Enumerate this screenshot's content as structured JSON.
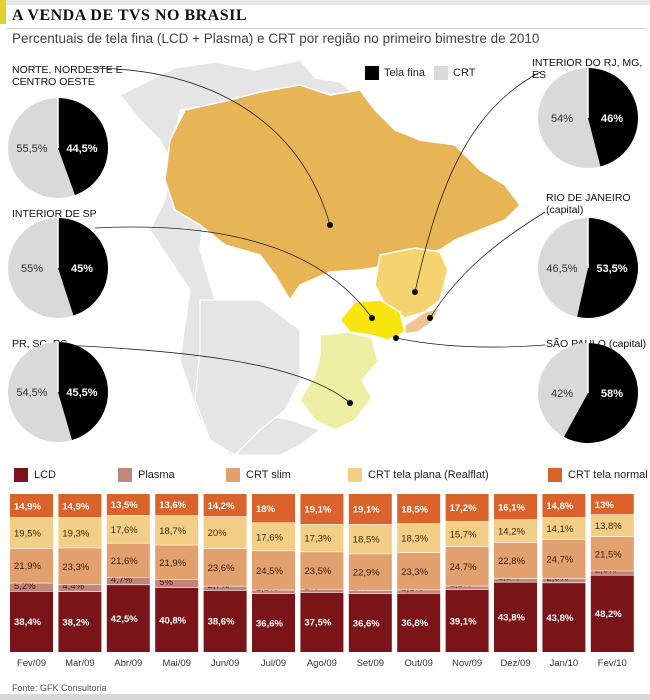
{
  "header": {
    "title": "A VENDA DE TVS NO BRASIL",
    "subtitle": "Percentuais de tela fina (LCD + Plasma) e CRT por região no primeiro bimestre de 2010"
  },
  "map_legend": {
    "thin": "Tela fina",
    "crt": "CRT"
  },
  "source": "Fonte: GFK Consultoria",
  "colors": {
    "thin": "#000000",
    "crt": "#d9d9d9",
    "lcd": "#7b1419",
    "plasma": "#c0867c",
    "crt_slim": "#e2a06e",
    "crt_flat": "#f3ce86",
    "crt_normal": "#d9632a",
    "map_north": "#e8b556",
    "map_sp": "#f8e40f",
    "map_interior": "#f5d36f",
    "map_rj": "#f1c393",
    "map_south": "#eeeea5"
  },
  "chart_data": [
    {
      "type": "pie",
      "title": "Percentuais de tela fina (LCD + Plasma) e CRT por região no primeiro bimestre de 2010",
      "series_names": [
        "Tela fina",
        "CRT"
      ],
      "pies": [
        {
          "region": "NORTE, NORDESTE E\nCENTRO OESTE",
          "thin": 44.5,
          "crt": 55.5,
          "thin_label": "44,5%",
          "crt_label": "55,5%"
        },
        {
          "region": "INTERIOR DE SP",
          "thin": 45,
          "crt": 55,
          "thin_label": "45%",
          "crt_label": "55%"
        },
        {
          "region": "PR, SC, RS",
          "thin": 45.5,
          "crt": 54.5,
          "thin_label": "45,5%",
          "crt_label": "54,5%"
        },
        {
          "region": "INTERIOR DO RJ, MG, ES",
          "thin": 46,
          "crt": 54,
          "thin_label": "46%",
          "crt_label": "54%"
        },
        {
          "region": "RIO DE JANEIRO\n(capital)",
          "thin": 53.5,
          "crt": 46.5,
          "thin_label": "53,5%",
          "crt_label": "46,5%"
        },
        {
          "region": "SÃO PAULO (capital)",
          "thin": 58,
          "crt": 42,
          "thin_label": "58%",
          "crt_label": "42%"
        }
      ]
    },
    {
      "type": "bar",
      "stacked": true,
      "categories": [
        "Fev/09",
        "Mar/09",
        "Abr/09",
        "Mai/09",
        "Jun/09",
        "Jul/09",
        "Ago/09",
        "Set/09",
        "Out/09",
        "Nov/09",
        "Dez/09",
        "Jan/10",
        "Fev/10"
      ],
      "ylim": [
        0,
        100
      ],
      "series": [
        {
          "name": "LCD",
          "values": [
            38.4,
            38.2,
            42.5,
            40.8,
            38.6,
            36.6,
            37.5,
            36.6,
            36.8,
            39.1,
            43.8,
            43.8,
            48.2
          ],
          "labels": [
            "38,4%",
            "38,2%",
            "42,5%",
            "40,8%",
            "38,6%",
            "36,6%",
            "37,5%",
            "36,6%",
            "36,8%",
            "39,1%",
            "43,8%",
            "43,8%",
            "48,2%"
          ]
        },
        {
          "name": "Plasma",
          "values": [
            5.2,
            4.4,
            4.7,
            5,
            2.7,
            2.2,
            2,
            2,
            2.1,
            2.2,
            2.2,
            2.6,
            2.6
          ],
          "labels": [
            "5,2%",
            "4,4%",
            "4,7%",
            "5%",
            "2,7%",
            "2,2%",
            "2%",
            "2%",
            "2,1%",
            "2,2%",
            "2,2%",
            "2,6%",
            "2,6%"
          ]
        },
        {
          "name": "CRT slim",
          "values": [
            21.9,
            23.3,
            21.6,
            21.9,
            23.6,
            24.5,
            23.5,
            22.9,
            23.3,
            24.7,
            22.8,
            24.7,
            21.5
          ],
          "labels": [
            "21,9%",
            "23,3%",
            "21,6%",
            "21,9%",
            "23,6%",
            "24,5%",
            "23,5%",
            "22,9%",
            "23,3%",
            "24,7%",
            "22,8%",
            "24,7%",
            "21,5%"
          ]
        },
        {
          "name": "CRT tela plana (Realflat)",
          "values": [
            19.5,
            19.3,
            17.6,
            18.7,
            20,
            17.6,
            17.3,
            18.5,
            18.3,
            15.7,
            14.2,
            14.1,
            13.8
          ],
          "labels": [
            "19,5%",
            "19,3%",
            "17,6%",
            "18,7%",
            "20%",
            "17,6%",
            "17,3%",
            "18,5%",
            "18,3%",
            "15,7%",
            "14,2%",
            "14,1%",
            "13,8%"
          ]
        },
        {
          "name": "CRT tela normal",
          "values": [
            14.9,
            14.9,
            13.5,
            13.6,
            14.2,
            18,
            19.1,
            19.1,
            18.5,
            17.2,
            16.1,
            14.8,
            13
          ],
          "labels": [
            "14,9%",
            "14,9%",
            "13,5%",
            "13,6%",
            "14,2%",
            "18%",
            "19,1%",
            "19,1%",
            "18,5%",
            "17,2%",
            "16,1%",
            "14,8%",
            "13%"
          ]
        }
      ]
    }
  ]
}
